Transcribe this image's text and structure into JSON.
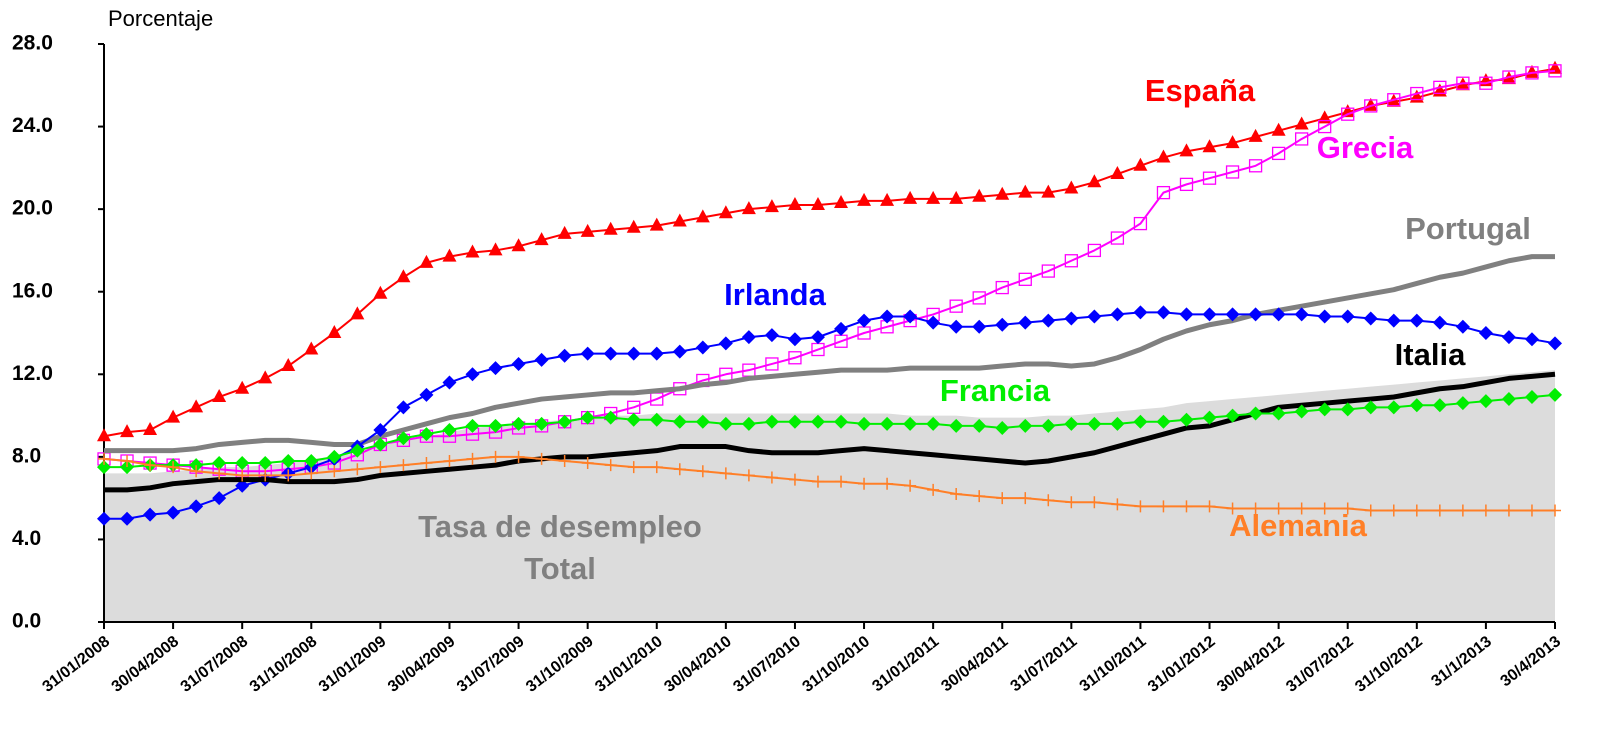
{
  "chart_data": {
    "type": "line",
    "y_label": "Porcentaje",
    "ylim": [
      0,
      28
    ],
    "yticks": [
      {
        "value": 0,
        "label": "0.0"
      },
      {
        "value": 4,
        "label": "4.0"
      },
      {
        "value": 8,
        "label": "8.0"
      },
      {
        "value": 12,
        "label": "12.0"
      },
      {
        "value": 16,
        "label": "16.0"
      },
      {
        "value": 20,
        "label": "20.0"
      },
      {
        "value": 24,
        "label": "24.0"
      },
      {
        "value": 28,
        "label": "28.0"
      }
    ],
    "categories": [
      "31/01/2008",
      null,
      null,
      "30/04/2008",
      null,
      null,
      "31/07/2008",
      null,
      null,
      "31/10/2008",
      null,
      null,
      "31/01/2009",
      null,
      null,
      "30/04/2009",
      null,
      null,
      "31/07/2009",
      null,
      null,
      "31/10/2009",
      null,
      null,
      "31/01/2010",
      null,
      null,
      "30/04/2010",
      null,
      null,
      "31/07/2010",
      null,
      null,
      "31/10/2010",
      null,
      null,
      "31/01/2011",
      null,
      null,
      "30/04/2011",
      null,
      null,
      "31/07/2011",
      null,
      null,
      "31/10/2011",
      null,
      null,
      "31/01/2012",
      null,
      null,
      "30/04/2012",
      null,
      null,
      "31/07/2012",
      null,
      null,
      "31/10/2012",
      null,
      null,
      "31/1/2013",
      null,
      null,
      "30/4/2013"
    ],
    "area": {
      "name": "Tasa de desempleo Total",
      "color": "#dcdcdc",
      "values": [
        7.2,
        7.2,
        7.2,
        7.3,
        7.4,
        7.5,
        7.5,
        7.6,
        7.7,
        7.9,
        8.0,
        8.2,
        8.5,
        8.8,
        9.0,
        9.2,
        9.4,
        9.5,
        9.6,
        9.7,
        9.8,
        9.9,
        10.0,
        10.0,
        10.1,
        10.1,
        10.1,
        10.1,
        10.1,
        10.1,
        10.1,
        10.1,
        10.1,
        10.1,
        10.1,
        10.0,
        10.0,
        10.0,
        9.9,
        9.9,
        9.9,
        10.0,
        10.0,
        10.1,
        10.2,
        10.3,
        10.4,
        10.6,
        10.7,
        10.8,
        10.9,
        11.0,
        11.1,
        11.2,
        11.3,
        11.4,
        11.5,
        11.6,
        11.7,
        11.8,
        11.9,
        12.0,
        12.1,
        12.2
      ]
    },
    "series": [
      {
        "name": "España",
        "color": "#ff0000",
        "marker": "triangle",
        "values": [
          9.0,
          9.2,
          9.3,
          9.9,
          10.4,
          10.9,
          11.3,
          11.8,
          12.4,
          13.2,
          14.0,
          14.9,
          15.9,
          16.7,
          17.4,
          17.7,
          17.9,
          18.0,
          18.2,
          18.5,
          18.8,
          18.9,
          19.0,
          19.1,
          19.2,
          19.4,
          19.6,
          19.8,
          20.0,
          20.1,
          20.2,
          20.2,
          20.3,
          20.4,
          20.4,
          20.5,
          20.5,
          20.5,
          20.6,
          20.7,
          20.8,
          20.8,
          21.0,
          21.3,
          21.7,
          22.1,
          22.5,
          22.8,
          23.0,
          23.2,
          23.5,
          23.8,
          24.1,
          24.4,
          24.7,
          25.0,
          25.2,
          25.4,
          25.7,
          26.0,
          26.2,
          26.3,
          26.6,
          26.8
        ]
      },
      {
        "name": "Grecia",
        "color": "#ff00ff",
        "marker": "square",
        "values": [
          7.9,
          7.8,
          7.7,
          7.6,
          7.5,
          7.4,
          7.3,
          7.3,
          7.4,
          7.5,
          7.7,
          8.1,
          8.6,
          8.8,
          9.0,
          9.0,
          9.1,
          9.2,
          9.4,
          9.5,
          9.7,
          9.9,
          10.1,
          10.4,
          10.8,
          11.3,
          11.7,
          12.0,
          12.2,
          12.5,
          12.8,
          13.2,
          13.6,
          14.0,
          14.3,
          14.6,
          14.9,
          15.3,
          15.7,
          16.2,
          16.6,
          17.0,
          17.5,
          18.0,
          18.6,
          19.3,
          20.8,
          21.2,
          21.5,
          21.8,
          22.1,
          22.7,
          23.4,
          24.0,
          24.6,
          25.0,
          25.3,
          25.6,
          25.9,
          26.1,
          26.1,
          26.4,
          26.6,
          26.7
        ]
      },
      {
        "name": "Portugal",
        "color": "#808080",
        "marker": "none",
        "values": [
          8.3,
          8.3,
          8.3,
          8.3,
          8.4,
          8.6,
          8.7,
          8.8,
          8.8,
          8.7,
          8.6,
          8.6,
          9.0,
          9.3,
          9.6,
          9.9,
          10.1,
          10.4,
          10.6,
          10.8,
          10.9,
          11.0,
          11.1,
          11.1,
          11.2,
          11.3,
          11.5,
          11.6,
          11.8,
          11.9,
          12.0,
          12.1,
          12.2,
          12.2,
          12.2,
          12.3,
          12.3,
          12.3,
          12.3,
          12.4,
          12.5,
          12.5,
          12.4,
          12.5,
          12.8,
          13.2,
          13.7,
          14.1,
          14.4,
          14.6,
          14.9,
          15.1,
          15.3,
          15.5,
          15.7,
          15.9,
          16.1,
          16.4,
          16.7,
          16.9,
          17.2,
          17.5,
          17.7,
          17.7
        ]
      },
      {
        "name": "Irlanda",
        "color": "#0000ff",
        "marker": "diamond",
        "values": [
          5.0,
          5.0,
          5.2,
          5.3,
          5.6,
          6.0,
          6.6,
          6.9,
          7.2,
          7.5,
          7.9,
          8.5,
          9.3,
          10.4,
          11.0,
          11.6,
          12.0,
          12.3,
          12.5,
          12.7,
          12.9,
          13.0,
          13.0,
          13.0,
          13.0,
          13.1,
          13.3,
          13.5,
          13.8,
          13.9,
          13.7,
          13.8,
          14.2,
          14.6,
          14.8,
          14.8,
          14.5,
          14.3,
          14.3,
          14.4,
          14.5,
          14.6,
          14.7,
          14.8,
          14.9,
          15.0,
          15.0,
          14.9,
          14.9,
          14.9,
          14.9,
          14.9,
          14.9,
          14.8,
          14.8,
          14.7,
          14.6,
          14.6,
          14.5,
          14.3,
          14.0,
          13.8,
          13.7,
          13.5
        ]
      },
      {
        "name": "Italia",
        "color": "#000000",
        "marker": "none",
        "values": [
          6.4,
          6.4,
          6.5,
          6.7,
          6.8,
          6.9,
          6.9,
          6.9,
          6.8,
          6.8,
          6.8,
          6.9,
          7.1,
          7.2,
          7.3,
          7.4,
          7.5,
          7.6,
          7.8,
          7.9,
          8.0,
          8.0,
          8.1,
          8.2,
          8.3,
          8.5,
          8.5,
          8.5,
          8.3,
          8.2,
          8.2,
          8.2,
          8.3,
          8.4,
          8.3,
          8.2,
          8.1,
          8.0,
          7.9,
          7.8,
          7.7,
          7.8,
          8.0,
          8.2,
          8.5,
          8.8,
          9.1,
          9.4,
          9.5,
          9.8,
          10.1,
          10.4,
          10.5,
          10.6,
          10.7,
          10.8,
          10.9,
          11.1,
          11.3,
          11.4,
          11.6,
          11.8,
          11.9,
          12.0
        ]
      },
      {
        "name": "Francia",
        "color": "#00ee00",
        "marker": "diamond",
        "values": [
          7.5,
          7.5,
          7.6,
          7.6,
          7.6,
          7.7,
          7.7,
          7.7,
          7.8,
          7.8,
          8.0,
          8.3,
          8.6,
          8.9,
          9.1,
          9.3,
          9.5,
          9.5,
          9.6,
          9.6,
          9.7,
          9.9,
          9.9,
          9.8,
          9.8,
          9.7,
          9.7,
          9.6,
          9.6,
          9.7,
          9.7,
          9.7,
          9.7,
          9.6,
          9.6,
          9.6,
          9.6,
          9.5,
          9.5,
          9.4,
          9.5,
          9.5,
          9.6,
          9.6,
          9.6,
          9.7,
          9.7,
          9.8,
          9.9,
          10.0,
          10.1,
          10.1,
          10.2,
          10.3,
          10.3,
          10.4,
          10.4,
          10.5,
          10.5,
          10.6,
          10.7,
          10.8,
          10.9,
          11.0
        ]
      },
      {
        "name": "Alemania",
        "color": "#ff7f27",
        "marker": "plus",
        "values": [
          7.9,
          7.8,
          7.6,
          7.5,
          7.3,
          7.2,
          7.1,
          7.1,
          7.1,
          7.2,
          7.3,
          7.4,
          7.5,
          7.6,
          7.7,
          7.8,
          7.9,
          8.0,
          8.0,
          7.9,
          7.8,
          7.7,
          7.6,
          7.5,
          7.5,
          7.4,
          7.3,
          7.2,
          7.1,
          7.0,
          6.9,
          6.8,
          6.8,
          6.7,
          6.7,
          6.6,
          6.4,
          6.2,
          6.1,
          6.0,
          6.0,
          5.9,
          5.8,
          5.8,
          5.7,
          5.6,
          5.6,
          5.6,
          5.6,
          5.5,
          5.5,
          5.5,
          5.5,
          5.5,
          5.5,
          5.4,
          5.4,
          5.4,
          5.4,
          5.4,
          5.4,
          5.4,
          5.4,
          5.4
        ]
      }
    ]
  }
}
